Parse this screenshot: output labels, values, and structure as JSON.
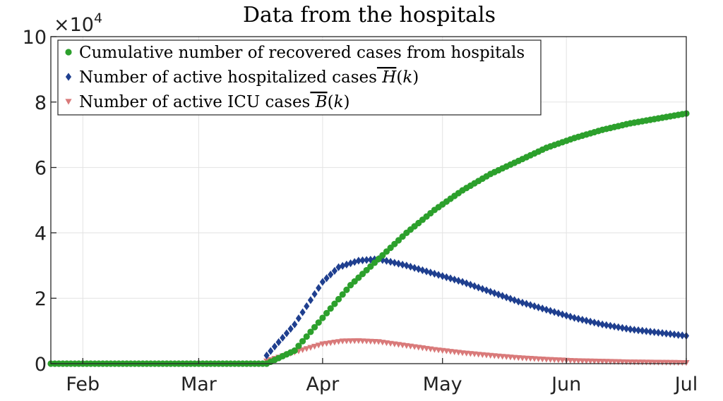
{
  "chart_data": {
    "type": "scatter",
    "title": "Data from the hospitals",
    "xlabel": "",
    "ylabel": "",
    "y_exponent_label": "×10",
    "y_exponent_power": "4",
    "x_range": [
      "2020-01-24",
      "2020-07-01"
    ],
    "ylim": [
      0,
      100000
    ],
    "y_ticks": [
      0,
      20000,
      40000,
      60000,
      80000,
      100000
    ],
    "y_tick_labels": [
      "0",
      "2",
      "4",
      "6",
      "8",
      "10"
    ],
    "x_ticks": [
      "2020-02-01",
      "2020-03-01",
      "2020-04-01",
      "2020-05-01",
      "2020-06-01",
      "2020-07-01"
    ],
    "x_tick_labels": [
      "Feb",
      "Mar",
      "Apr",
      "May",
      "Jun",
      "Jul"
    ],
    "grid": true,
    "legend_position": "top-left",
    "series": [
      {
        "name": "Cumulative number of recovered cases from hospitals",
        "marker": "circle",
        "color": "#2ca02c",
        "x": [
          "2020-01-24",
          "2020-03-18",
          "2020-03-25",
          "2020-04-01",
          "2020-04-08",
          "2020-04-15",
          "2020-04-22",
          "2020-04-29",
          "2020-05-06",
          "2020-05-13",
          "2020-05-20",
          "2020-05-27",
          "2020-06-03",
          "2020-06-10",
          "2020-06-17",
          "2020-06-24",
          "2020-07-01"
        ],
        "y": [
          0,
          0,
          4000,
          14000,
          24000,
          32000,
          40000,
          47000,
          53000,
          58000,
          62000,
          66000,
          69000,
          71500,
          73500,
          75000,
          76500
        ]
      },
      {
        "name": "Number of active hospitalized cases",
        "marker": "diamond",
        "color": "#1f3f8f",
        "x": [
          "2020-03-18",
          "2020-03-25",
          "2020-04-01",
          "2020-04-05",
          "2020-04-10",
          "2020-04-15",
          "2020-04-22",
          "2020-04-29",
          "2020-05-06",
          "2020-05-13",
          "2020-05-20",
          "2020-05-27",
          "2020-06-03",
          "2020-06-10",
          "2020-06-17",
          "2020-06-24",
          "2020-07-01"
        ],
        "y": [
          2500,
          12000,
          25000,
          29500,
          31500,
          32000,
          30000,
          27500,
          25000,
          22000,
          19000,
          16500,
          14000,
          12000,
          10500,
          9500,
          8500
        ]
      },
      {
        "name": "Number of active ICU cases",
        "marker": "triangle-down",
        "color": "#d97a7a",
        "x": [
          "2020-03-18",
          "2020-03-25",
          "2020-04-01",
          "2020-04-06",
          "2020-04-10",
          "2020-04-15",
          "2020-04-22",
          "2020-04-29",
          "2020-05-06",
          "2020-05-13",
          "2020-05-20",
          "2020-05-27",
          "2020-06-03",
          "2020-06-10",
          "2020-06-17",
          "2020-06-24",
          "2020-07-01"
        ],
        "y": [
          800,
          3500,
          6000,
          6900,
          7000,
          6700,
          5500,
          4300,
          3300,
          2500,
          1800,
          1300,
          900,
          700,
          500,
          400,
          300
        ]
      }
    ]
  }
}
